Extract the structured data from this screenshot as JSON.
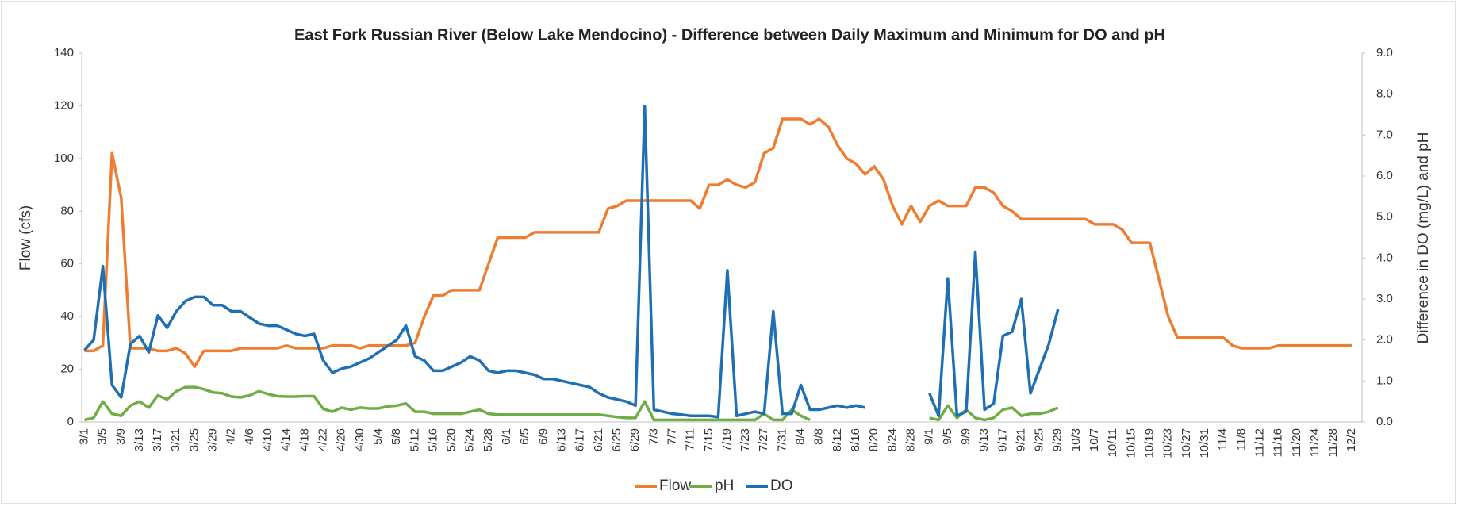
{
  "chart_data": {
    "type": "line",
    "title": "East Fork Russian River (Below Lake Mendocino) - Difference between Daily Maximum and Minimum for DO and pH",
    "y_label": "Flow (cfs)",
    "y2_label": "Difference in DO (mg/L) and pH",
    "categories": [
      "3/1",
      null,
      "3/5",
      null,
      "3/9",
      null,
      "3/13",
      null,
      "3/17",
      null,
      "3/21",
      null,
      "3/25",
      null,
      "3/29",
      null,
      "4/2",
      null,
      "4/6",
      null,
      "4/10",
      null,
      "4/14",
      null,
      "4/18",
      null,
      "4/22",
      null,
      "4/26",
      null,
      "4/30",
      null,
      "5/4",
      null,
      "5/8",
      null,
      "5/12",
      null,
      "5/16",
      null,
      "5/20",
      null,
      "5/24",
      null,
      "5/28",
      null,
      "6/1",
      null,
      "6/5",
      null,
      "6/9",
      null,
      "6/13",
      null,
      "6/17",
      null,
      "6/21",
      null,
      "6/25",
      null,
      "6/29",
      null,
      "7/3",
      null,
      "7/7",
      null,
      "7/11",
      null,
      "7/15",
      null,
      "7/19",
      null,
      "7/23",
      null,
      "7/27",
      null,
      "7/31",
      null,
      "8/4",
      null,
      "8/8",
      null,
      "8/12",
      null,
      "8/16",
      null,
      "8/20",
      null,
      "8/24",
      null,
      "8/28",
      null,
      "9/1",
      null,
      "9/5",
      null,
      "9/9",
      null,
      "9/13",
      null,
      "9/17",
      null,
      "9/21",
      null,
      "9/25",
      null,
      "9/29",
      null,
      "10/3",
      null,
      "10/7",
      null,
      "10/11",
      null,
      "10/15",
      null,
      "10/19",
      null,
      "10/23",
      null,
      "10/27",
      null,
      "10/31",
      null,
      "11/4",
      null,
      "11/8",
      null,
      "11/12",
      null,
      "11/16",
      null,
      "11/20",
      null,
      "11/24",
      null,
      "11/28",
      null,
      "12/2"
    ],
    "series": [
      {
        "name": "Flow",
        "color": "#ed7d31",
        "values": [
          27,
          27,
          29,
          102,
          85,
          28,
          28,
          28,
          27,
          27,
          28,
          26,
          21,
          27,
          27,
          27,
          27,
          28,
          28,
          28,
          28,
          28,
          29,
          28,
          28,
          28,
          28,
          29,
          29,
          29,
          28,
          29,
          29,
          29,
          29,
          29,
          30,
          40,
          48,
          48,
          50,
          50,
          50,
          50,
          60,
          70,
          70,
          70,
          70,
          72,
          72,
          72,
          72,
          72,
          72,
          72,
          72,
          81,
          82,
          84,
          84,
          84,
          84,
          84,
          84,
          84,
          84,
          81,
          90,
          90,
          92,
          90,
          89,
          91,
          102,
          104,
          115,
          115,
          115,
          113,
          115,
          112,
          105,
          100,
          98,
          94,
          97,
          92,
          82,
          75,
          82,
          76,
          82,
          84,
          82,
          82,
          82,
          89,
          89,
          87,
          82,
          80,
          77,
          77,
          77,
          77,
          77,
          77,
          77,
          77,
          75,
          75,
          75,
          73,
          68,
          68,
          68,
          54,
          40,
          32,
          32,
          32,
          32,
          32,
          32,
          29,
          28,
          28,
          28,
          28,
          29,
          29,
          29,
          29,
          29,
          29,
          29,
          29,
          29
        ]
      },
      {
        "name": "pH",
        "color": "#70ad47",
        "axis": "y2",
        "values": [
          0.05,
          0.1,
          0.5,
          0.2,
          0.15,
          0.4,
          0.5,
          0.35,
          0.65,
          0.55,
          0.75,
          0.85,
          0.85,
          0.8,
          0.72,
          0.7,
          0.62,
          0.6,
          0.65,
          0.75,
          0.68,
          0.63,
          0.62,
          0.62,
          0.63,
          0.63,
          0.32,
          0.25,
          0.35,
          0.3,
          0.35,
          0.33,
          0.33,
          0.38,
          0.4,
          0.45,
          0.25,
          0.25,
          0.2,
          0.2,
          0.2,
          0.2,
          0.25,
          0.3,
          0.2,
          0.18,
          0.18,
          0.18,
          0.18,
          0.18,
          0.18,
          0.18,
          0.18,
          0.18,
          0.18,
          0.18,
          0.18,
          0.15,
          0.12,
          0.1,
          0.1,
          0.5,
          0.05,
          0.05,
          0.05,
          0.05,
          0.05,
          0.05,
          0.05,
          0.05,
          0.05,
          0.05,
          0.05,
          0.05,
          0.2,
          0.05,
          0.05,
          0.3,
          0.15,
          0.05,
          null,
          null,
          null,
          null,
          null,
          null,
          null,
          null,
          null,
          null,
          null,
          null,
          0.1,
          0.05,
          0.4,
          0.1,
          0.3,
          0.1,
          0.05,
          0.1,
          0.3,
          0.35,
          0.15,
          0.2,
          0.2,
          0.25,
          0.35,
          null,
          null,
          null,
          null,
          null,
          null,
          null,
          null,
          null,
          null,
          null,
          null,
          null,
          null,
          null,
          null,
          null,
          null,
          null,
          null,
          null,
          null,
          null,
          null,
          null,
          null,
          null,
          null,
          null,
          null,
          null,
          null
        ]
      },
      {
        "name": "DO",
        "color": "#1f6fb5",
        "axis": "y2",
        "values": [
          1.75,
          2.0,
          3.8,
          0.9,
          0.6,
          1.9,
          2.1,
          1.7,
          2.6,
          2.3,
          2.7,
          2.95,
          3.05,
          3.05,
          2.85,
          2.85,
          2.7,
          2.7,
          2.55,
          2.4,
          2.35,
          2.35,
          2.25,
          2.15,
          2.1,
          2.15,
          1.5,
          1.2,
          1.3,
          1.35,
          1.45,
          1.55,
          1.7,
          1.85,
          2.0,
          2.35,
          1.6,
          1.5,
          1.25,
          1.25,
          1.35,
          1.45,
          1.6,
          1.5,
          1.25,
          1.2,
          1.25,
          1.25,
          1.2,
          1.15,
          1.05,
          1.05,
          1.0,
          0.95,
          0.9,
          0.85,
          0.7,
          0.6,
          0.55,
          0.5,
          0.4,
          7.7,
          0.3,
          0.25,
          0.2,
          0.18,
          0.15,
          0.15,
          0.15,
          0.12,
          3.7,
          0.15,
          0.2,
          0.25,
          0.2,
          2.7,
          0.2,
          0.2,
          0.9,
          0.3,
          0.3,
          0.35,
          0.4,
          0.35,
          0.4,
          0.35,
          null,
          null,
          null,
          null,
          null,
          null,
          0.7,
          0.15,
          3.5,
          0.15,
          0.25,
          4.15,
          0.3,
          0.45,
          2.1,
          2.2,
          3.0,
          0.7,
          1.3,
          1.9,
          2.75,
          null,
          null,
          null,
          null,
          null,
          null,
          null,
          null,
          null,
          null,
          null,
          null,
          null,
          null,
          null,
          null,
          null,
          null,
          null,
          null,
          null,
          null,
          null,
          null,
          null,
          null,
          null,
          null,
          null,
          null,
          null,
          null
        ]
      }
    ],
    "ylim": [
      0,
      140
    ],
    "yticks": [
      0,
      20,
      40,
      60,
      80,
      100,
      120,
      140
    ],
    "y2lim": [
      0,
      9
    ],
    "y2ticks": [
      {
        "value": 0,
        "label": "0.0"
      },
      {
        "value": 1,
        "label": "1.0"
      },
      {
        "value": 2,
        "label": "2.0"
      },
      {
        "value": 3,
        "label": "3.0"
      },
      {
        "value": 4,
        "label": "4.0"
      },
      {
        "value": 5,
        "label": "5.0"
      },
      {
        "value": 6,
        "label": "6.0"
      },
      {
        "value": 7,
        "label": "7.0"
      },
      {
        "value": 8,
        "label": "8.0"
      },
      {
        "value": 9,
        "label": "9.0"
      }
    ],
    "grid": false,
    "legend": "bottom"
  }
}
